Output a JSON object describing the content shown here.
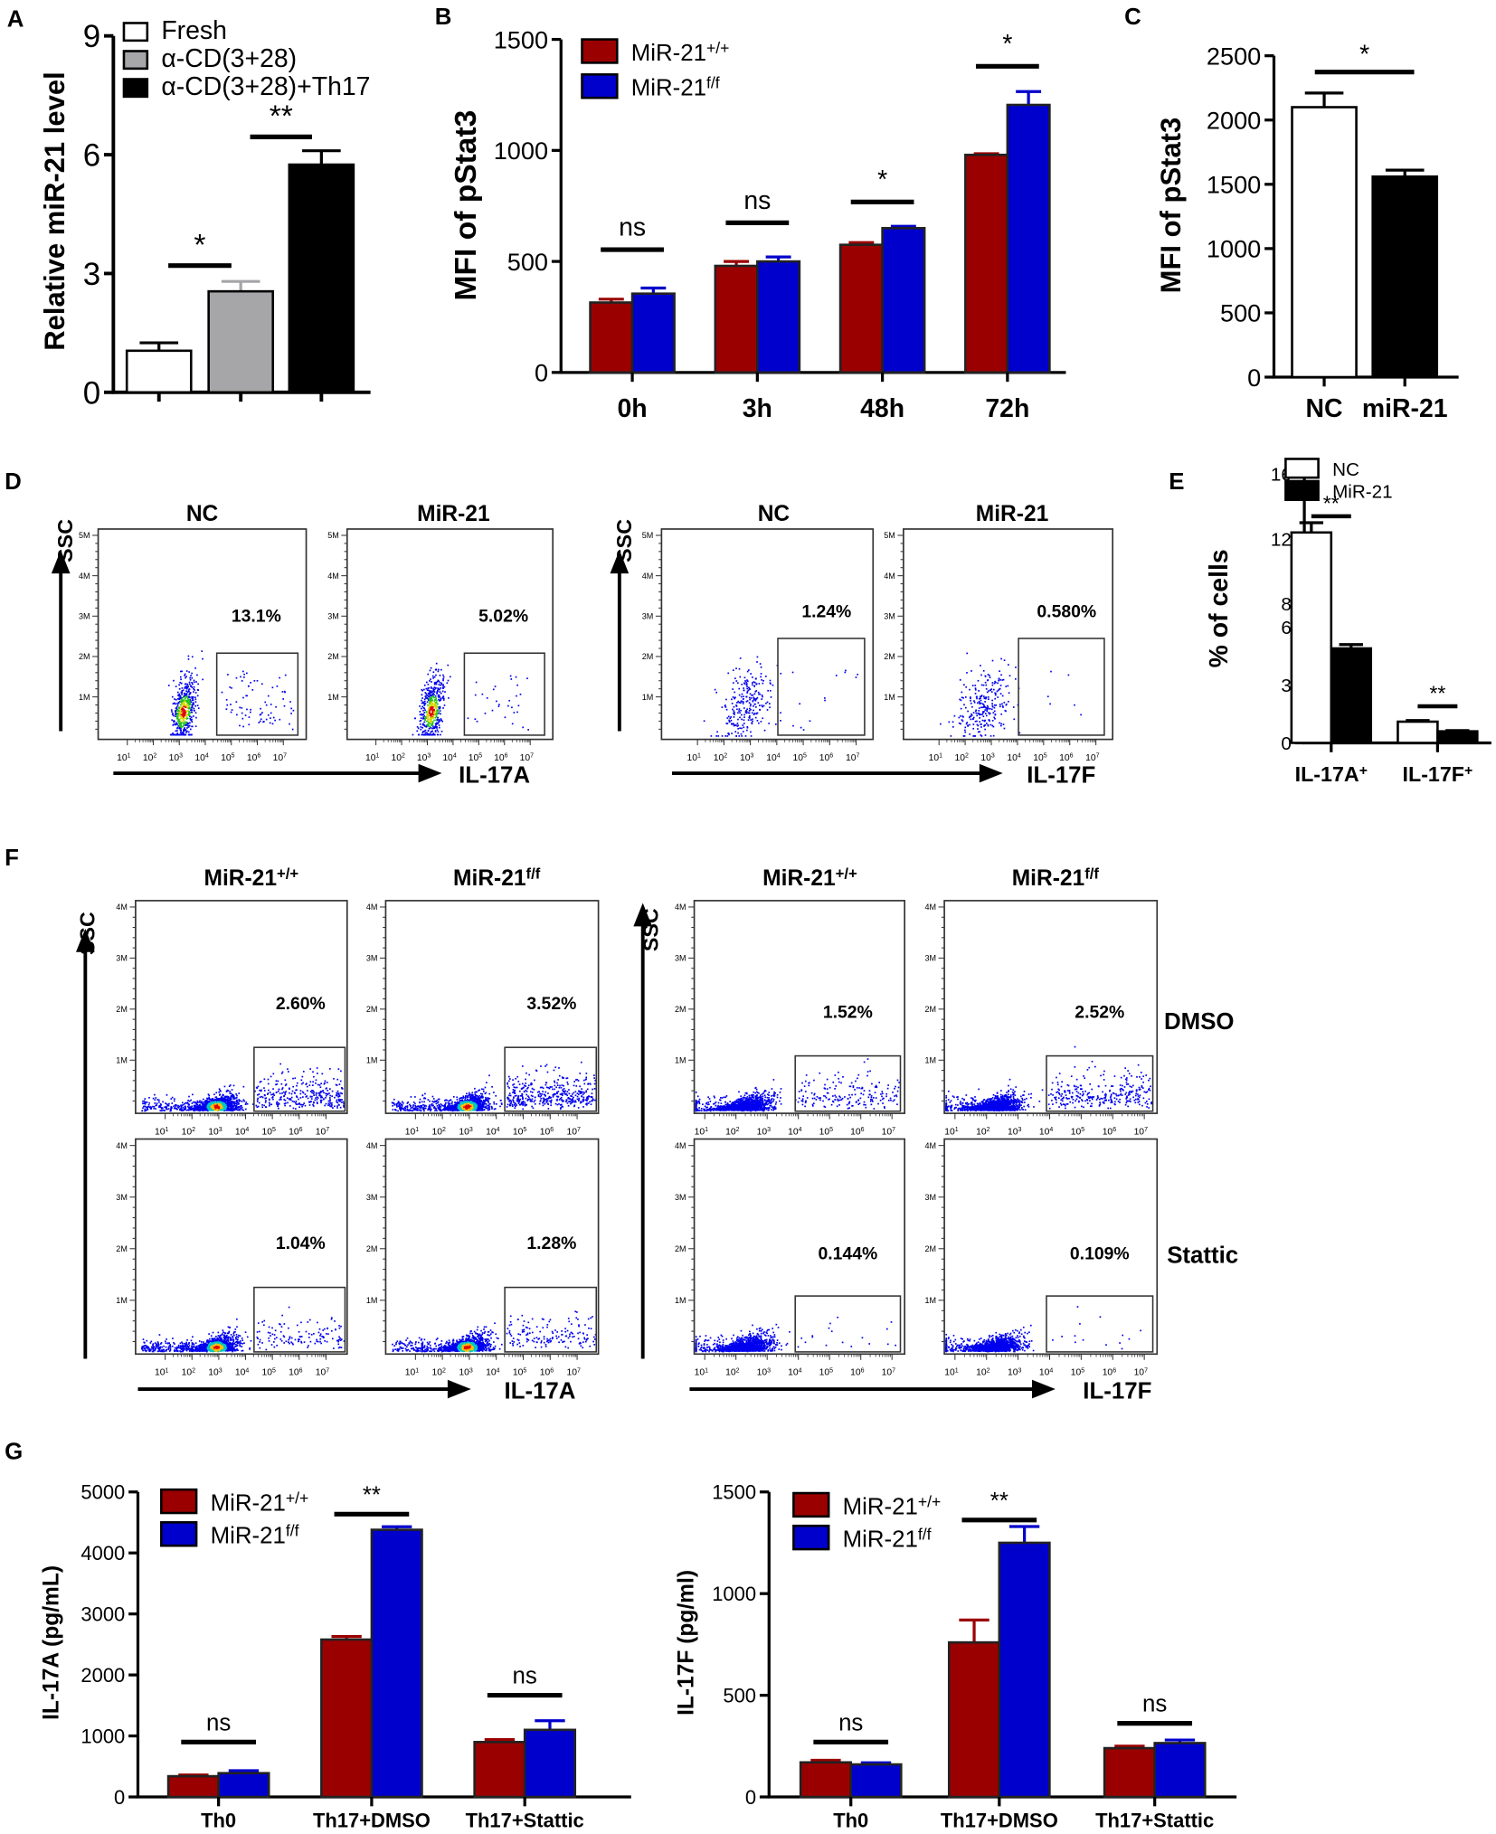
{
  "panel_labels": [
    "A",
    "B",
    "C",
    "D",
    "E",
    "F",
    "G"
  ],
  "chart_data": [
    {
      "id": "A",
      "type": "bar",
      "ylabel": "Relative miR-21 level",
      "ylim": [
        0,
        9
      ],
      "yticks": [
        0,
        3,
        6,
        9
      ],
      "legend": [
        "Fresh",
        "α-CD(3+28)",
        "α-CD(3+28)+Th17"
      ],
      "values": [
        1.05,
        2.55,
        5.75
      ],
      "errors": [
        0.2,
        0.25,
        0.35
      ],
      "colors": [
        "#ffffff",
        "#a6a6a8",
        "#000000"
      ],
      "significance": [
        {
          "label": "*",
          "from": 0,
          "to": 1,
          "y": 3.2
        },
        {
          "label": "**",
          "from": 1,
          "to": 2,
          "y": 6.45
        }
      ]
    },
    {
      "id": "B",
      "type": "bar",
      "ylabel": "MFI of pStat3",
      "ylim": [
        0,
        1500
      ],
      "yticks": [
        0,
        500,
        1000,
        1500
      ],
      "categories": [
        "0h",
        "3h",
        "48h",
        "72h"
      ],
      "series": [
        {
          "name": {
            "base": "MiR-21",
            "sup": "+/+"
          },
          "values": [
            315,
            480,
            575,
            980
          ],
          "errors": [
            15,
            20,
            10,
            5
          ],
          "color": "#9b0000"
        },
        {
          "name": {
            "base": "MiR-21",
            "sup": "f/f"
          },
          "values": [
            355,
            500,
            650,
            1205
          ],
          "errors": [
            25,
            20,
            8,
            60
          ],
          "color": "#0000cc"
        }
      ],
      "significance": [
        {
          "label": "ns",
          "category": 0,
          "y": 553
        },
        {
          "label": "ns",
          "category": 1,
          "y": 674
        },
        {
          "label": "*",
          "category": 2,
          "y": 768
        },
        {
          "label": "*",
          "category": 3,
          "y": 1379
        }
      ]
    },
    {
      "id": "C",
      "type": "bar",
      "ylabel": "MFI of pStat3",
      "ylim": [
        0,
        2500
      ],
      "yticks": [
        0,
        500,
        1000,
        1500,
        2000,
        2500
      ],
      "categories": [
        "NC",
        "miR-21"
      ],
      "values": [
        2100,
        1560
      ],
      "errors": [
        110,
        50
      ],
      "colors": [
        "#ffffff",
        "#000000"
      ],
      "significance": [
        {
          "label": "*",
          "from": 0,
          "to": 1,
          "y": 2373
        }
      ]
    },
    {
      "id": "E",
      "type": "bar",
      "ylabel": "% of cells",
      "ylim": [
        0,
        16
      ],
      "yticks": [
        0,
        3,
        6,
        8,
        12,
        16
      ],
      "axis_break": [
        6,
        8
      ],
      "categories": [
        {
          "base": "IL-17A",
          "sup": "+"
        },
        {
          "base": "IL-17F",
          "sup": "+"
        }
      ],
      "series": [
        {
          "name": "NC",
          "values": [
            12.4,
            1.1
          ],
          "errors": [
            0.6,
            0.06
          ],
          "color": "#ffffff"
        },
        {
          "name": "MiR-21",
          "values": [
            4.9,
            0.6
          ],
          "errors": [
            0.2,
            0.04
          ],
          "color": "#000000"
        }
      ],
      "significance": [
        {
          "label": "**",
          "category": 0,
          "y": 13.4
        },
        {
          "label": "**",
          "category": 1,
          "y": 1.9
        }
      ]
    },
    {
      "id": "G-left",
      "type": "bar",
      "ylabel": "IL-17A (pg/mL)",
      "ylim": [
        0,
        5000
      ],
      "yticks": [
        0,
        1000,
        2000,
        3000,
        4000,
        5000
      ],
      "categories": [
        "Th0",
        "Th17+DMSO",
        "Th17+Stattic"
      ],
      "series": [
        {
          "name": {
            "base": "MiR-21",
            "sup": "+/+"
          },
          "values": [
            340,
            2580,
            900
          ],
          "errors": [
            20,
            50,
            40
          ],
          "color": "#9b0000"
        },
        {
          "name": {
            "base": "MiR-21",
            "sup": "f/f"
          },
          "values": [
            390,
            4380,
            1100
          ],
          "errors": [
            40,
            50,
            150
          ],
          "color": "#0000cc"
        }
      ],
      "significance": [
        {
          "label": "ns",
          "category": 0,
          "y": 900
        },
        {
          "label": "**",
          "category": 1,
          "y": 4636
        },
        {
          "label": "ns",
          "category": 2,
          "y": 1667
        }
      ]
    },
    {
      "id": "G-right",
      "type": "bar",
      "ylabel": "IL-17F (pg/ml)",
      "ylim": [
        0,
        1500
      ],
      "yticks": [
        0,
        500,
        1000,
        1500
      ],
      "categories": [
        "Th0",
        "Th17+DMSO",
        "Th17+Stattic"
      ],
      "series": [
        {
          "name": {
            "base": "MiR-21",
            "sup": "+/+"
          },
          "values": [
            170,
            760,
            240
          ],
          "errors": [
            10,
            110,
            10
          ],
          "color": "#9b0000"
        },
        {
          "name": {
            "base": "MiR-21",
            "sup": "f/f"
          },
          "values": [
            160,
            1250,
            265
          ],
          "errors": [
            8,
            80,
            15
          ],
          "color": "#0000cc"
        }
      ],
      "significance": [
        {
          "label": "ns",
          "category": 0,
          "y": 270
        },
        {
          "label": "**",
          "category": 1,
          "y": 1362
        },
        {
          "label": "ns",
          "category": 2,
          "y": 362
        }
      ]
    }
  ],
  "flow_d": {
    "ylabel": "SSC",
    "xlabels": [
      "IL-17A",
      "IL-17F"
    ],
    "yticks": [
      "1M",
      "2M",
      "3M",
      "4M",
      "5M"
    ],
    "xticks": [
      {
        "base": "10",
        "sup": "1"
      },
      {
        "base": "10",
        "sup": "2"
      },
      {
        "base": "10",
        "sup": "3"
      },
      {
        "base": "10",
        "sup": "4"
      },
      {
        "base": "10",
        "sup": "5"
      },
      {
        "base": "10",
        "sup": "6"
      },
      {
        "base": "10",
        "sup": "7"
      }
    ],
    "plots": [
      {
        "title": "NC",
        "percent": "13.1%"
      },
      {
        "title": "MiR-21",
        "percent": "5.02%"
      },
      {
        "title": "NC",
        "percent": "1.24%"
      },
      {
        "title": "MiR-21",
        "percent": "0.580%"
      }
    ]
  },
  "flow_f": {
    "ylabel": "SSC",
    "xlabels": [
      "IL-17A",
      "IL-17F"
    ],
    "yticks": [
      "1M",
      "2M",
      "3M",
      "4M"
    ],
    "xticks": [
      {
        "base": "10",
        "sup": "1"
      },
      {
        "base": "10",
        "sup": "2"
      },
      {
        "base": "10",
        "sup": "3"
      },
      {
        "base": "10",
        "sup": "4"
      },
      {
        "base": "10",
        "sup": "5"
      },
      {
        "base": "10",
        "sup": "6"
      },
      {
        "base": "10",
        "sup": "7"
      }
    ],
    "column_titles": [
      {
        "base": "MiR-21",
        "sup": "+/+"
      },
      {
        "base": "MiR-21",
        "sup": "f/f"
      },
      {
        "base": "MiR-21",
        "sup": "+/+"
      },
      {
        "base": "MiR-21",
        "sup": "f/f"
      }
    ],
    "row_labels": [
      "DMSO",
      "Stattic"
    ],
    "percents": [
      [
        "2.60%",
        "3.52%",
        "1.52%",
        "2.52%"
      ],
      [
        "1.04%",
        "1.28%",
        "0.144%",
        "0.109%"
      ]
    ]
  }
}
